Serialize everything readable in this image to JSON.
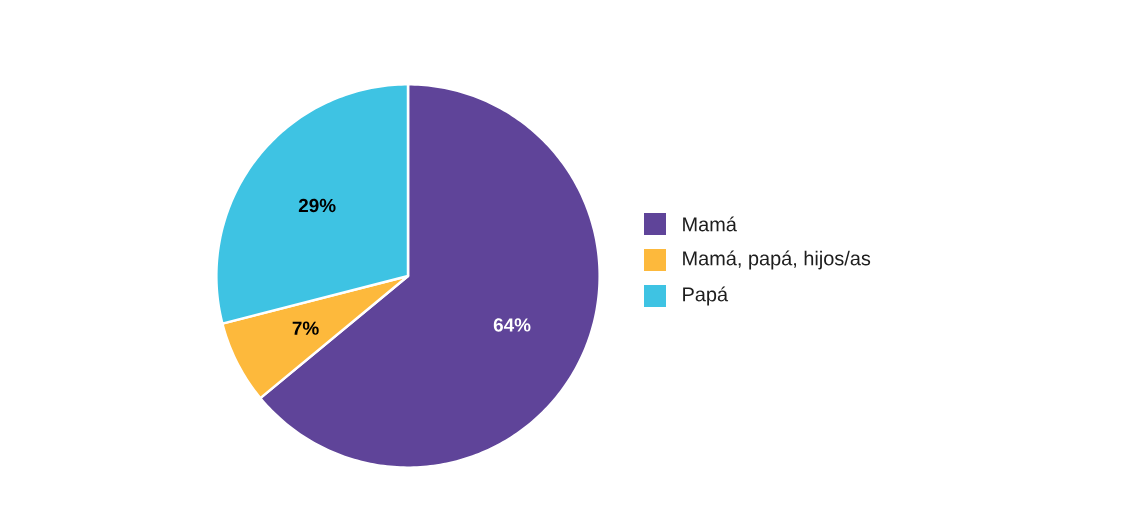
{
  "chart_data": {
    "type": "pie",
    "categories": [
      "Mamá",
      "Mamá, papá, hijos/as",
      "Papá"
    ],
    "values": [
      64,
      7,
      29
    ],
    "colors": [
      "#5f4499",
      "#fdb93c",
      "#3ec3e3"
    ],
    "value_labels": [
      "64%",
      "7%",
      "29%"
    ],
    "legend": "right"
  }
}
